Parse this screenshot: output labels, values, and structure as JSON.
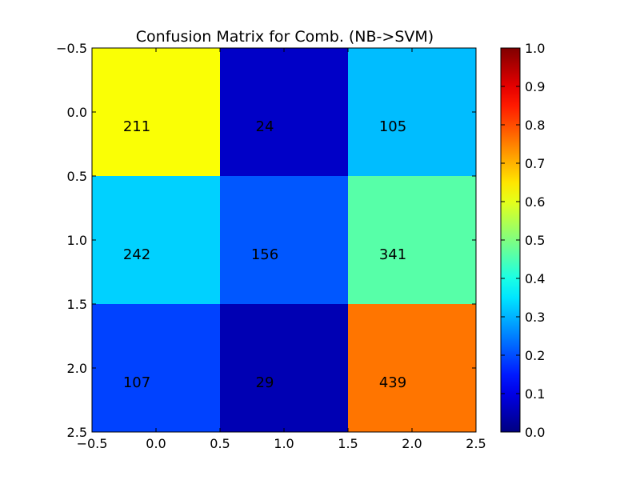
{
  "chart_data": {
    "type": "heatmap",
    "title": "Confusion Matrix for Comb. (NB->SVM)",
    "xlabel": "",
    "ylabel": "",
    "matrix": [
      [
        211,
        24,
        105
      ],
      [
        242,
        156,
        341
      ],
      [
        107,
        29,
        439
      ]
    ],
    "row_norm_values": [
      [
        0.62,
        0.07,
        0.31
      ],
      [
        0.33,
        0.21,
        0.46
      ],
      [
        0.19,
        0.05,
        0.76
      ]
    ],
    "xlim": [
      -0.5,
      2.5
    ],
    "ylim": [
      -0.5,
      2.5
    ],
    "y_inverted": true,
    "x_ticks": [
      -0.5,
      0.0,
      0.5,
      1.0,
      1.5,
      2.0,
      2.5
    ],
    "x_tick_labels": [
      "−0.5",
      "0.0",
      "0.5",
      "1.0",
      "1.5",
      "2.0",
      "2.5"
    ],
    "y_ticks": [
      -0.5,
      0.0,
      0.5,
      1.0,
      1.5,
      2.0,
      2.5
    ],
    "y_tick_labels": [
      "−0.5",
      "0.0",
      "0.5",
      "1.0",
      "1.5",
      "2.0",
      "2.5"
    ],
    "colormap": "jet",
    "colorbar": {
      "range": [
        0.0,
        1.0
      ],
      "ticks": [
        0.0,
        0.1,
        0.2,
        0.3,
        0.4,
        0.5,
        0.6,
        0.7,
        0.8,
        0.9,
        1.0
      ],
      "tick_labels": [
        "0.0",
        "0.1",
        "0.2",
        "0.3",
        "0.4",
        "0.5",
        "0.6",
        "0.7",
        "0.8",
        "0.9",
        "1.0"
      ]
    },
    "grid": false,
    "legend": "none"
  }
}
